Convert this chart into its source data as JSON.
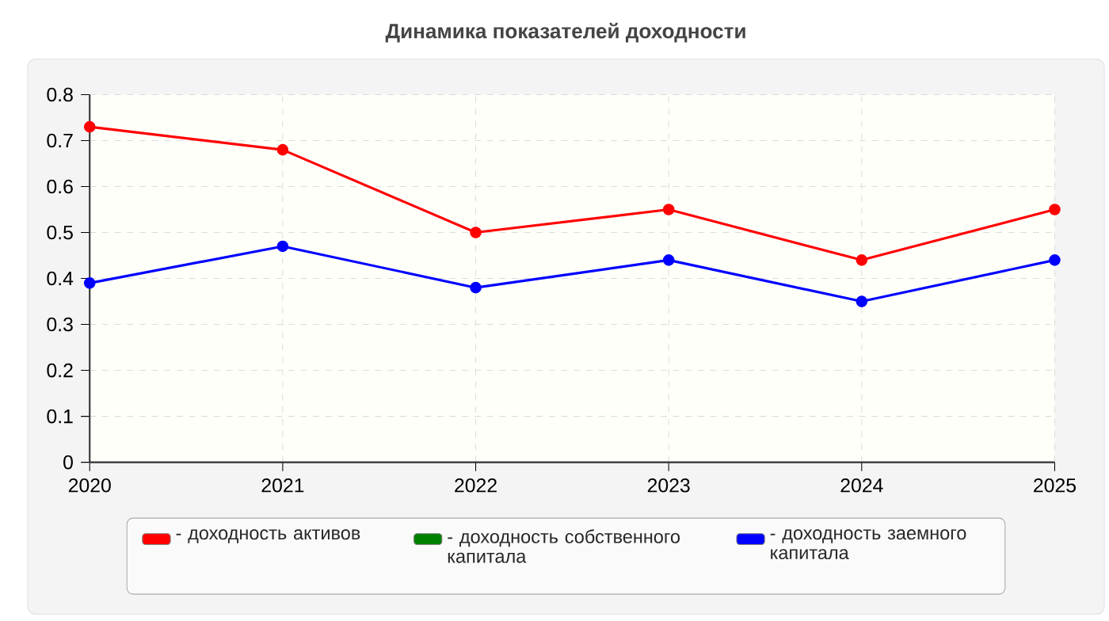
{
  "chart_data": {
    "type": "line",
    "title": "Динамика показателей доходности",
    "x": [
      2020,
      2021,
      2022,
      2023,
      2024,
      2025
    ],
    "xlim": [
      2020,
      2025
    ],
    "xticks": [
      2020,
      2021,
      2022,
      2023,
      2024,
      2025
    ],
    "ylim": [
      0,
      0.8
    ],
    "yticks": [
      0,
      0.1,
      0.2,
      0.3,
      0.4,
      0.5,
      0.6,
      0.7,
      0.8
    ],
    "grid": true,
    "legend": "bottom",
    "marker": "circle",
    "line_style": "solid",
    "series": [
      {
        "name": "- доходность активов",
        "color": "#ff0000",
        "values": [
          0.73,
          0.68,
          0.5,
          0.55,
          0.44,
          0.55
        ]
      },
      {
        "name": "- доходность собственного капитала",
        "color": "#008000",
        "values": [
          null,
          null,
          null,
          null,
          null,
          null
        ]
      },
      {
        "name": "- доходность заемного капитала",
        "color": "#0000ff",
        "values": [
          0.39,
          0.47,
          0.38,
          0.44,
          0.35,
          0.44
        ]
      }
    ]
  }
}
